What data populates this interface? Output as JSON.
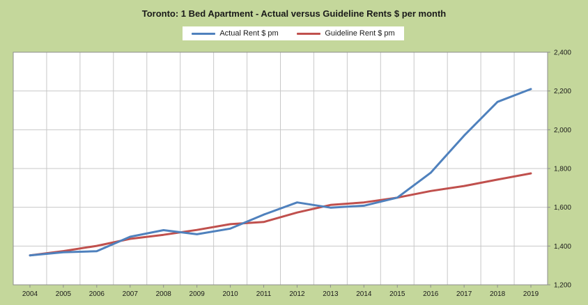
{
  "chart_data": {
    "type": "line",
    "title": "Toronto: 1 Bed Apartment - Actual versus Guideline Rents $ per month",
    "xlabel": "",
    "ylabel": "",
    "x": [
      "2004",
      "2005",
      "2006",
      "2007",
      "2008",
      "2009",
      "2010",
      "2011",
      "2012",
      "2013",
      "2014",
      "2015",
      "2016",
      "2017",
      "2018",
      "2019"
    ],
    "ylim": [
      1200,
      2400
    ],
    "yticks": [
      "1,200",
      "1,400",
      "1,600",
      "1,800",
      "2,000",
      "2,200",
      "2,400"
    ],
    "y_axis_side": "right",
    "grid": true,
    "legend_position": "top-center",
    "series": [
      {
        "name": "Actual Rent $ pm",
        "color": "#4f81bd",
        "values": [
          1352,
          1368,
          1373,
          1448,
          1482,
          1461,
          1490,
          1562,
          1625,
          1598,
          1608,
          1650,
          1778,
          1970,
          2144,
          2210
        ]
      },
      {
        "name": "Guideline Rent $ pm",
        "color": "#c0504d",
        "values": [
          1352,
          1374,
          1401,
          1437,
          1458,
          1483,
          1513,
          1524,
          1573,
          1612,
          1625,
          1650,
          1684,
          1710,
          1743,
          1775
        ]
      }
    ]
  }
}
